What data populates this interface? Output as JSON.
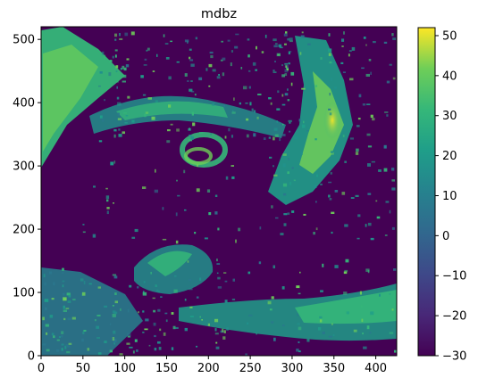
{
  "chart_data": {
    "type": "heatmap",
    "title": "mdbz",
    "xlabel": "",
    "ylabel": "",
    "xlim": [
      0,
      425
    ],
    "ylim": [
      0,
      520
    ],
    "x_ticks": [
      0,
      50,
      100,
      150,
      200,
      250,
      300,
      350,
      400
    ],
    "y_ticks": [
      0,
      100,
      200,
      300,
      400,
      500
    ],
    "colorbar": {
      "label": "",
      "min": -30,
      "max": 52,
      "ticks": [
        -30,
        -20,
        -10,
        0,
        10,
        20,
        30,
        40,
        50
      ],
      "colormap": "viridis"
    },
    "background_value": -30,
    "features": [
      {
        "name": "upper-left band",
        "x_range": [
          0,
          110
        ],
        "y_range": [
          300,
          520
        ],
        "value": 28
      },
      {
        "name": "upper cloud arc",
        "x_range": [
          60,
          300
        ],
        "y_range": [
          330,
          490
        ],
        "value": 18
      },
      {
        "name": "swirl vortex",
        "center": [
          200,
          320
        ],
        "value": 30
      },
      {
        "name": "right convective cluster",
        "x_range": [
          280,
          400
        ],
        "y_range": [
          210,
          520
        ],
        "value": 35
      },
      {
        "name": "lower cyclone swirl",
        "center": [
          160,
          110
        ],
        "value": 20
      },
      {
        "name": "lower-right band",
        "x_range": [
          300,
          425
        ],
        "y_range": [
          20,
          80
        ],
        "value": 30
      },
      {
        "name": "lower-left wedge",
        "x_range": [
          0,
          150
        ],
        "y_range": [
          0,
          120
        ],
        "value": 10
      }
    ]
  }
}
